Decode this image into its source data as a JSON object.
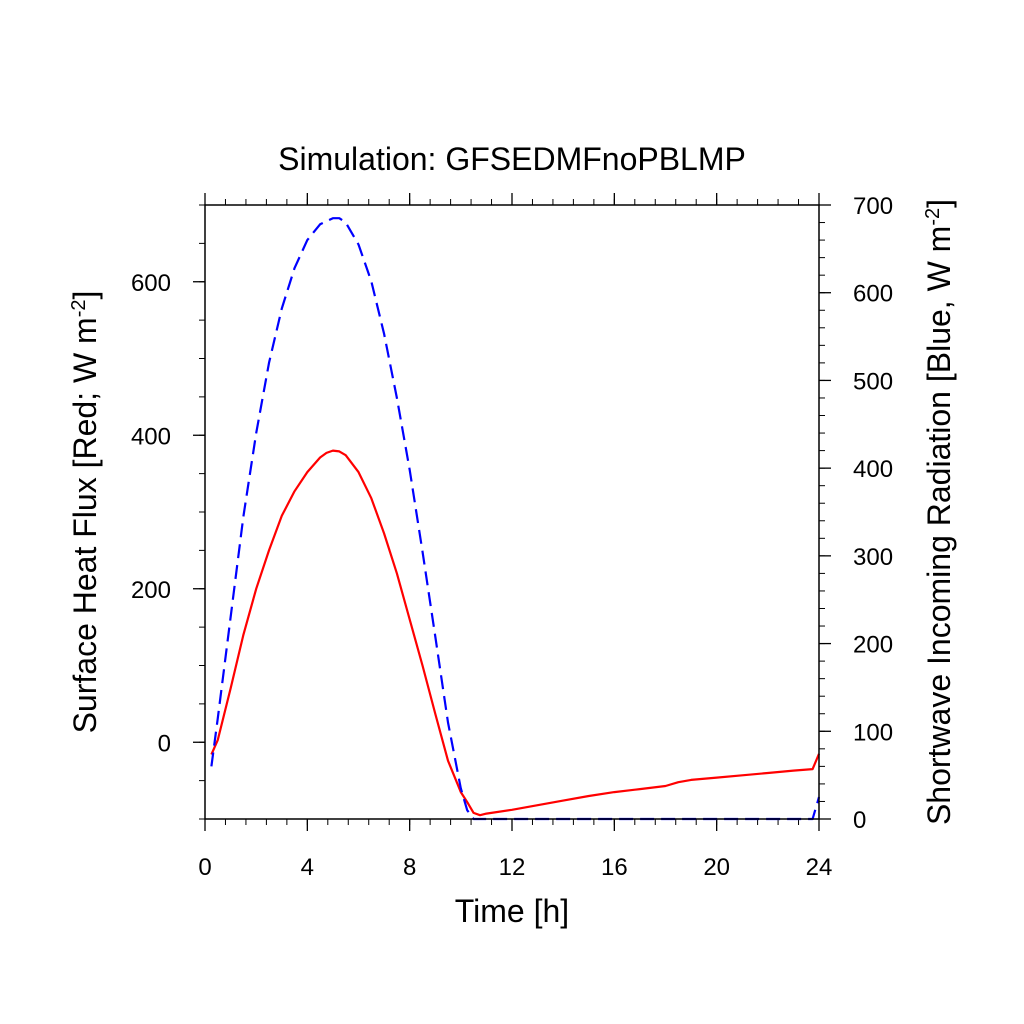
{
  "chart_data": {
    "type": "line",
    "title": "Simulation: GFSEDMFnoPBLMP",
    "xlabel": "Time [h]",
    "ylabel_left": {
      "main": "Surface Heat Flux [Red; W m",
      "sup": "-2",
      "end": "]"
    },
    "ylabel_right": {
      "main": "Shortwave Incoming Radiation [Blue, W m",
      "sup": "-2",
      "end": "]"
    },
    "xlim": [
      0,
      24
    ],
    "ylim_left": [
      -100,
      700
    ],
    "ylim_right": [
      0,
      700
    ],
    "x_ticks": [
      0,
      4,
      8,
      12,
      16,
      20,
      24
    ],
    "y_left_ticks": [
      0,
      200,
      400,
      600
    ],
    "y_right_ticks": [
      0,
      100,
      200,
      300,
      400,
      500,
      600,
      700
    ],
    "grid": false,
    "series": [
      {
        "color": "#ff0000",
        "style": "solid",
        "axis": "left",
        "x": [
          0.25,
          0.5,
          1,
          1.5,
          2,
          2.5,
          3,
          3.5,
          4,
          4.5,
          4.75,
          5,
          5.25,
          5.5,
          6,
          6.5,
          7,
          7.5,
          8,
          8.5,
          9,
          9.5,
          10,
          10.25,
          10.5,
          10.75,
          11,
          12,
          13,
          14,
          15,
          16,
          17,
          18,
          18.5,
          19,
          20,
          21,
          22,
          23,
          23.75,
          24
        ],
        "y": [
          -16,
          3,
          70,
          140,
          200,
          250,
          295,
          327,
          352,
          371,
          377,
          380,
          379,
          374,
          352,
          318,
          272,
          220,
          160,
          100,
          37,
          -24,
          -65,
          -78,
          -92,
          -95,
          -93,
          -88,
          -82,
          -76,
          -70,
          -65,
          -61,
          -57,
          -52,
          -49,
          -46,
          -43,
          -40,
          -37,
          -35,
          -15
        ]
      },
      {
        "color": "#0000ff",
        "style": "dashed",
        "axis": "right",
        "x": [
          0.25,
          0.5,
          1,
          1.5,
          2,
          2.5,
          3,
          3.5,
          4,
          4.5,
          5,
          5.25,
          5.5,
          6,
          6.5,
          7,
          7.5,
          8,
          8.5,
          9,
          9.5,
          10,
          10.25,
          10.5,
          10.75,
          11,
          12,
          14,
          16,
          18,
          20,
          22,
          23,
          23.75,
          24
        ],
        "y": [
          60,
          115,
          230,
          345,
          440,
          520,
          582,
          628,
          660,
          678,
          685,
          685,
          680,
          655,
          613,
          553,
          480,
          398,
          305,
          208,
          110,
          35,
          10,
          0,
          0,
          0,
          0,
          0,
          0,
          0,
          0,
          0,
          0,
          0,
          25
        ]
      }
    ]
  }
}
